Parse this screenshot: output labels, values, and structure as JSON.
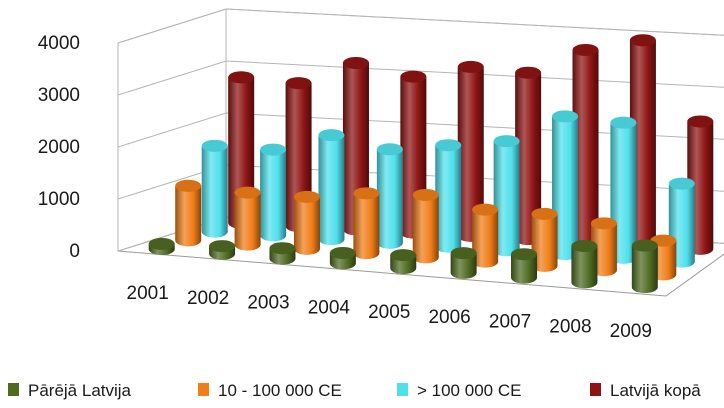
{
  "chart_data": {
    "type": "bar",
    "title": "",
    "xlabel": "",
    "ylabel": "",
    "categories": [
      "2001",
      "2002",
      "2003",
      "2004",
      "2005",
      "2006",
      "2007",
      "2008",
      "2009"
    ],
    "y_ticks": [
      "0",
      "1000",
      "2000",
      "3000",
      "4000"
    ],
    "ylim": [
      0,
      4000
    ],
    "grid": true,
    "legend_position": "bottom",
    "series": [
      {
        "name": "Pārējā Latvija",
        "color": "#4f6b22",
        "values": [
          100,
          150,
          200,
          200,
          250,
          380,
          450,
          700,
          800
        ]
      },
      {
        "name": "10 - 100 000 CE",
        "color": "#f07d18",
        "values": [
          1050,
          1000,
          1000,
          1150,
          1200,
          1000,
          1000,
          900,
          650
        ]
      },
      {
        "name": "> 100 000 CE",
        "color": "#4fe0ec",
        "values": [
          1650,
          1650,
          2000,
          1800,
          1950,
          2100,
          2650,
          2600,
          1500
        ]
      },
      {
        "name": "Latvijā kopā",
        "color": "#8e1414",
        "values": [
          2800,
          2750,
          3200,
          3000,
          3250,
          3200,
          3700,
          3950,
          2450
        ]
      }
    ]
  }
}
